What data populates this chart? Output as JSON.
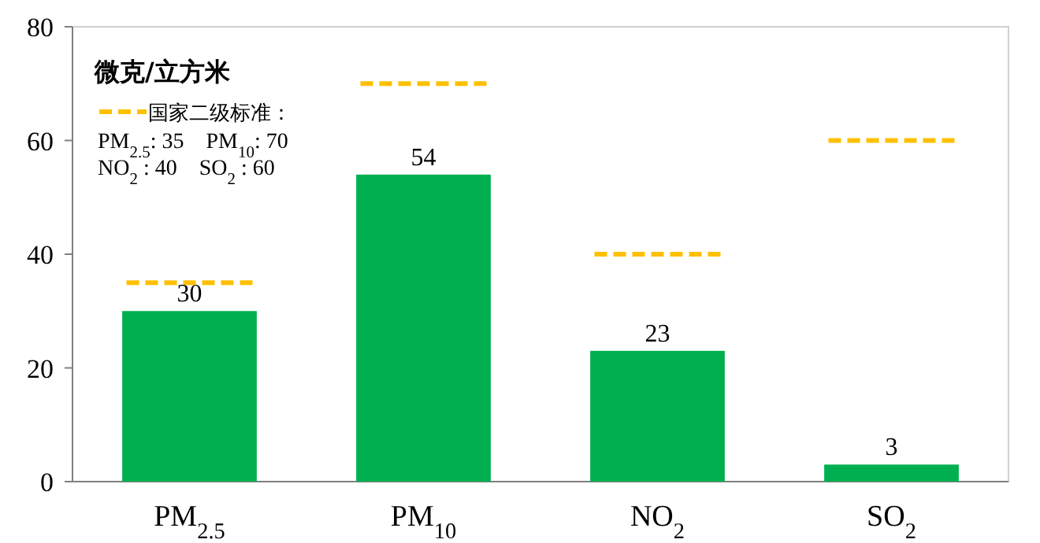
{
  "chart_data": {
    "type": "bar",
    "ylabel": "微克/立方米",
    "categories": [
      "PM$_{2.5}$",
      "PM$_{10}$",
      "NO$_{2}$",
      "SO$_{2}$"
    ],
    "values": [
      30,
      54,
      23,
      3
    ],
    "color": "#00b050",
    "value_labels": [
      "30",
      "54",
      "23",
      "3"
    ],
    "ref_lines": [
      {
        "axis": "y",
        "value": 35,
        "label": "国家二级标准：",
        "color": "#ffc000",
        "line_style": "dashed"
      },
      {
        "axis": "y",
        "value": 70,
        "color": "#ffc000",
        "line_style": "dashed"
      },
      {
        "axis": "y",
        "value": 40,
        "color": "#ffc000",
        "line_style": "dashed"
      },
      {
        "axis": "y",
        "value": 60,
        "color": "#ffc000",
        "line_style": "dashed"
      }
    ],
    "annotations": [
      "PM$_{2.5}$: 35    PM$_{10}$: 70",
      "NO$_{2}$ : 40    SO$_{2}$ : 60"
    ],
    "grid": false,
    "ylim": [
      0,
      80
    ],
    "yticks": [
      0,
      20,
      40,
      60,
      80
    ]
  }
}
